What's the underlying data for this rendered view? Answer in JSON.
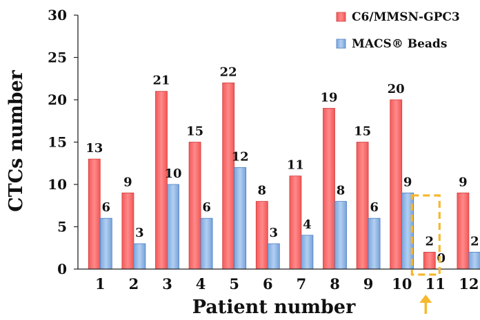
{
  "chart_data": {
    "type": "bar",
    "xlabel": "Patient number",
    "ylabel": "CTCs number",
    "ylim": [
      0,
      30
    ],
    "yticks": [
      "0",
      "5",
      "10",
      "15",
      "20",
      "25",
      "30"
    ],
    "categories": [
      "1",
      "2",
      "3",
      "4",
      "5",
      "6",
      "7",
      "8",
      "9",
      "10",
      "11",
      "12"
    ],
    "series": [
      {
        "name": "C6/MMSN-GPC3",
        "color": "#f06b6b",
        "values": [
          13,
          9,
          21,
          15,
          22,
          8,
          11,
          19,
          15,
          20,
          2,
          9
        ],
        "labels": [
          "13",
          "9",
          "21",
          "15",
          "22",
          "8",
          "11",
          "19",
          "15",
          "20",
          "2",
          "9"
        ]
      },
      {
        "name": "MACS® Beads",
        "color": "#8db5e6",
        "values": [
          6,
          3,
          10,
          6,
          12,
          3,
          4,
          8,
          6,
          9,
          0,
          2
        ],
        "labels": [
          "6",
          "3",
          "10",
          "6",
          "12",
          "3",
          "4",
          "8",
          "6",
          "9",
          "0",
          "2"
        ]
      }
    ],
    "legend_position": "top-right",
    "grid": false,
    "annotation": {
      "category": "11",
      "marker": "dashed-box-with-up-arrow",
      "color": "#f5b82e"
    }
  }
}
